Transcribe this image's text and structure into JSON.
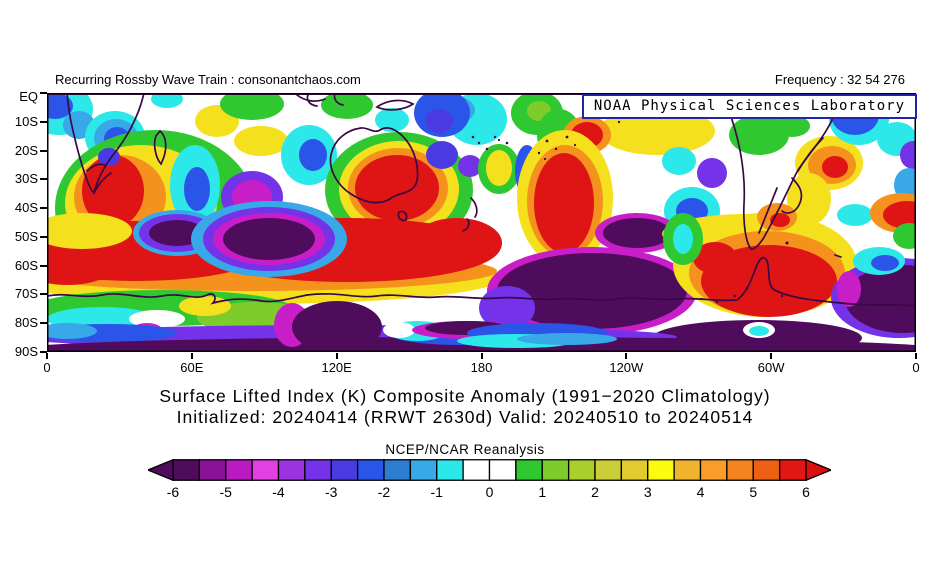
{
  "header": {
    "left_text": "Recurring Rossby Wave Train : consonantchaos.com",
    "right_text": "Frequency : 32 54 276"
  },
  "map": {
    "overlay_label": "NOAA Physical Sciences Laboratory"
  },
  "axes": {
    "y_tick_labels": [
      "EQ",
      "10S",
      "20S",
      "30S",
      "40S",
      "50S",
      "60S",
      "70S",
      "80S",
      "90S"
    ],
    "x_tick_labels": [
      "0",
      "60E",
      "120E",
      "180",
      "120W",
      "60W",
      "0"
    ]
  },
  "caption": {
    "line1": "Surface Lifted Index (K) Composite Anomaly (1991−2020 Climatology)",
    "line2": "Initialized: 20240414 (RRWT 2630d) Valid: 20240510 to 20240514"
  },
  "colorbar": {
    "title": "NCEP/NCAR Reanalysis",
    "tick_labels": [
      "-6",
      "-5",
      "-4",
      "-3",
      "-2",
      "-1",
      "0",
      "1",
      "2",
      "3",
      "4",
      "5",
      "6"
    ],
    "cell_colors": [
      "#500C5C",
      "#8A1296",
      "#B81CC0",
      "#E340E3",
      "#9C33E3",
      "#7433E8",
      "#4A3BE0",
      "#2B55E8",
      "#2C7CD2",
      "#38A8E8",
      "#2DE8E8",
      "#FFFFFF",
      "#FFFFFF",
      "#30C830",
      "#7ECC2C",
      "#AACE2C",
      "#CBCE36",
      "#E2CB2E",
      "#FBFB10",
      "#F0B42E",
      "#FA9C2A",
      "#F4841E",
      "#EE6014",
      "#E31616"
    ],
    "left_arrow_color": "#500C5C",
    "right_arrow_color": "#DD0E0E"
  },
  "chart_data": {
    "type": "heatmap",
    "subtype": "filled-contour-map",
    "title": "Surface Lifted Index (K) Composite Anomaly (1991-2020 Climatology)",
    "subtitle": "Initialized: 20240414 (RRWT 2630d) Valid: 20240510 to 20240514",
    "annotation_top_left": "Recurring Rossby Wave Train : consonantchaos.com",
    "annotation_top_right": "Frequency : 32 54 276",
    "data_source": "NCEP/NCAR Reanalysis",
    "provider": "NOAA Physical Sciences Laboratory",
    "units": "K",
    "region": "Southern Hemisphere, equator to South Pole, all longitudes",
    "x_axis": {
      "ticks": [
        "0",
        "60E",
        "120E",
        "180",
        "120W",
        "60W",
        "0"
      ],
      "range_deg_lon": [
        0,
        360
      ]
    },
    "y_axis": {
      "ticks": [
        "EQ",
        "10S",
        "20S",
        "30S",
        "40S",
        "50S",
        "60S",
        "70S",
        "80S",
        "90S"
      ],
      "range_deg_lat": [
        0,
        -90
      ]
    },
    "colorbar": {
      "min": -6,
      "max": 6,
      "cell_interval": 0.5,
      "label_interval": 1,
      "open_ended_arrows": true
    },
    "qualitative_features": [
      {
        "region": "South Africa (20S-40S, 15E-30E)",
        "anomaly_K": "+4 to +6"
      },
      {
        "region": "Northern and central Australia (15S-30S, 115E-145E)",
        "anomaly_K": "+5 to +6"
      },
      {
        "region": "Central South Pacific (10S-40S, 135W-115W)",
        "anomaly_K": "+4 to +6"
      },
      {
        "region": "Circumpolar belt 45S-65S from 0E to ~150E",
        "anomaly_K": "+5 to +6"
      },
      {
        "region": "Bellingshausen Sea / Antarctic Peninsula (55S-70S, 100W-40W)",
        "anomaly_K": "+5 to +6"
      },
      {
        "region": "Eastern South America / SW Atlantic (20S-35S, 60W-40W)",
        "anomaly_K": "+3 to +5"
      },
      {
        "region": "Indian Ocean SW of Australia (35S-50S, 55E-100E)",
        "anomaly_K": "-5 to -6"
      },
      {
        "region": "South of New Zealand (50S-70S, 150E-150W)",
        "anomaly_K": "-6"
      },
      {
        "region": "Antarctic interior band (75S-90S, all longitudes)",
        "anomaly_K": "-4 to -6"
      },
      {
        "region": "Tropical Indian Ocean and western Pacific patches (EQ-20S)",
        "anomaly_K": "-1 to -3"
      },
      {
        "region": "Near dateline (EQ-15S, ~170E-170W)",
        "anomaly_K": "-2 to -3"
      }
    ]
  }
}
